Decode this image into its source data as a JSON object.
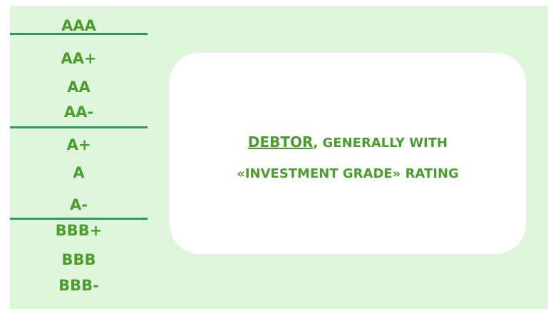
{
  "ratings": [
    "AAA",
    "AA+",
    "AA",
    "AA-",
    "A+",
    "A",
    "A-",
    "BBB+",
    "BBB",
    "BBB-"
  ],
  "card": {
    "lead": "DEBTOR",
    "line1_rest": ", GENERALLY WITH",
    "line2": "«INVESTMENT GRADE» RATING"
  }
}
